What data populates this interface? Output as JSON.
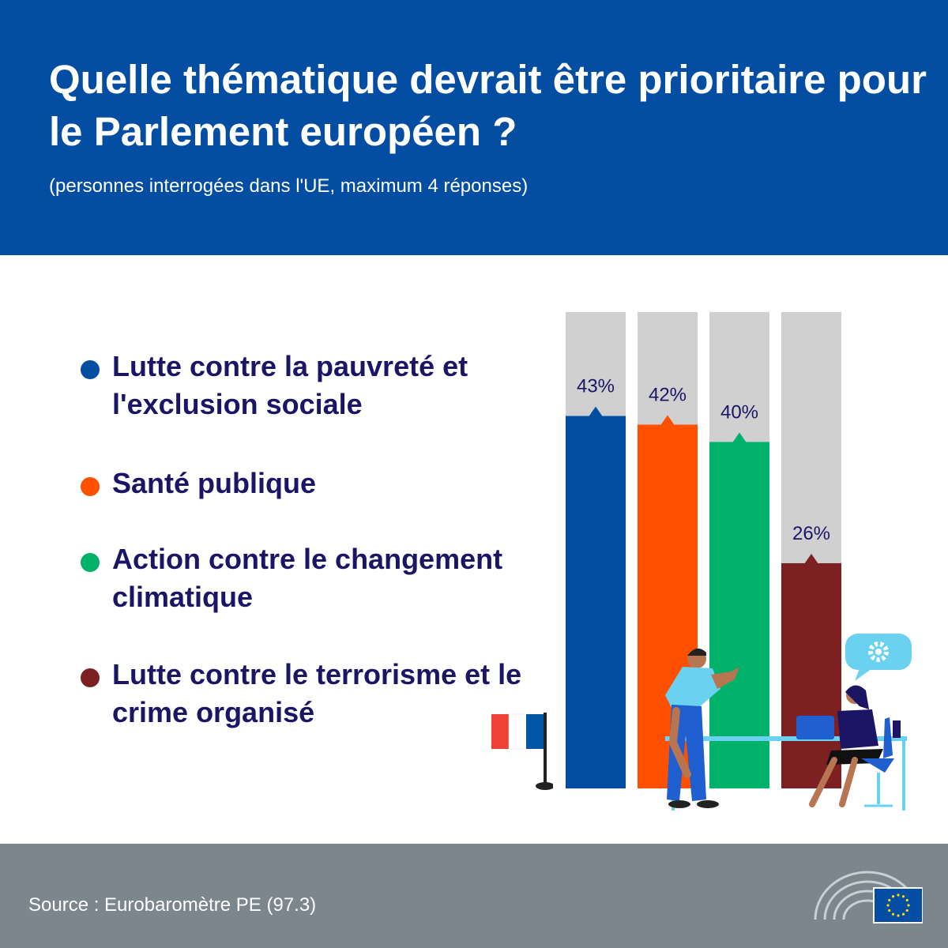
{
  "header": {
    "title": "Quelle thématique devrait être prioritaire pour le Parlement européen ?",
    "subtitle": "(personnes interrogées dans l'UE, maximum 4 réponses)"
  },
  "legend": [
    {
      "label": "Lutte contre la pauvreté et l'exclusion sociale",
      "color": "#034ea2"
    },
    {
      "label": "Santé publique",
      "color": "#ff5000"
    },
    {
      "label": "Action contre le changement climatique",
      "color": "#00b16a"
    },
    {
      "label": "Lutte contre le terrorisme et le crime organisé",
      "color": "#7d2022"
    }
  ],
  "chart_data": {
    "type": "bar",
    "title": "Quelle thématique devrait être prioritaire pour le Parlement européen ?",
    "subtitle": "(personnes interrogées dans l'UE, maximum 4 réponses)",
    "categories": [
      "Lutte contre la pauvreté et l'exclusion sociale",
      "Santé publique",
      "Action contre le changement climatique",
      "Lutte contre le terrorisme et le crime organisé"
    ],
    "values": [
      43,
      42,
      40,
      26
    ],
    "value_labels": [
      "43%",
      "42%",
      "40%",
      "26%"
    ],
    "colors": [
      "#034ea2",
      "#ff5000",
      "#00b16a",
      "#7d2022"
    ],
    "background_color": "#d0d0d0",
    "ylim": [
      0,
      55
    ],
    "grid": false
  },
  "footer": {
    "source": "Source : Eurobaromètre PE (97.3)"
  },
  "colors": {
    "header": "#034ea2",
    "footer": "#7b868d",
    "text_dark": "#1c1565",
    "eu_flag": "#034ea2",
    "eu_star": "#ffdd00"
  },
  "icons": [
    "france-flag-icon",
    "office-people-illustration",
    "gear-speech-bubble-icon",
    "hemicycle-logo",
    "eu-flag-icon"
  ]
}
